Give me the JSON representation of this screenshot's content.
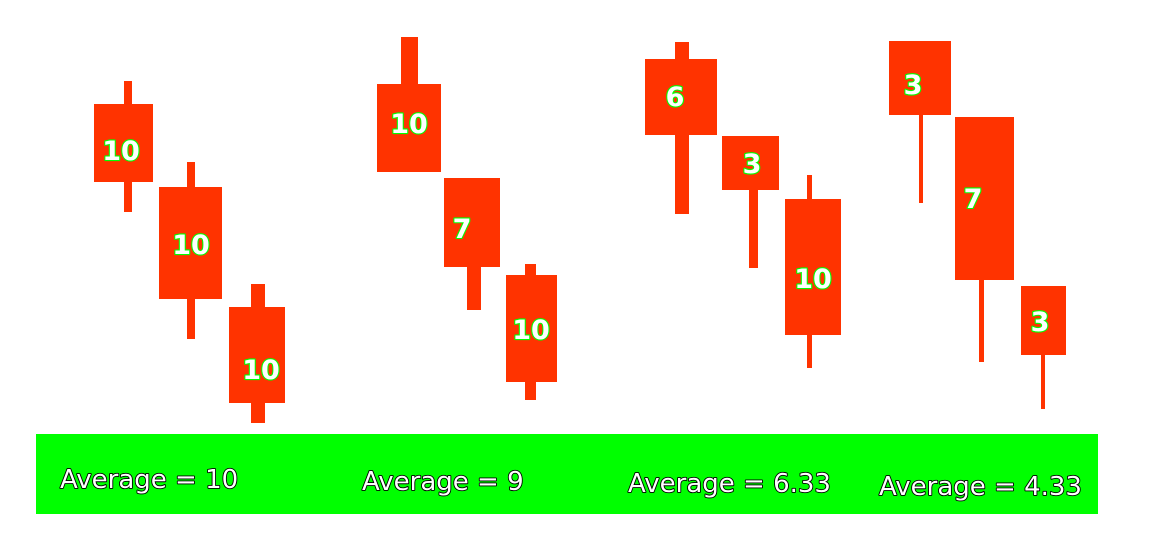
{
  "colors": {
    "candle": "#ff3300",
    "label_fill": "#ffffff",
    "label_stroke": "#00ff00",
    "footer": "#00ff00",
    "footer_text": "#ffffff",
    "footer_text_stroke": "#000000",
    "background": "#ffffff"
  },
  "groups": [
    {
      "candles": [
        {
          "label": "10"
        },
        {
          "label": "10"
        },
        {
          "label": "10"
        }
      ],
      "average_label": "Average = 10"
    },
    {
      "candles": [
        {
          "label": "10"
        },
        {
          "label": "7"
        },
        {
          "label": "10"
        }
      ],
      "average_label": "Average = 9"
    },
    {
      "candles": [
        {
          "label": "6"
        },
        {
          "label": "3"
        },
        {
          "label": "10"
        }
      ],
      "average_label": "Average = 6.33"
    },
    {
      "candles": [
        {
          "label": "3"
        },
        {
          "label": "7"
        },
        {
          "label": "3"
        }
      ],
      "average_label": "Average = 4.33"
    }
  ]
}
